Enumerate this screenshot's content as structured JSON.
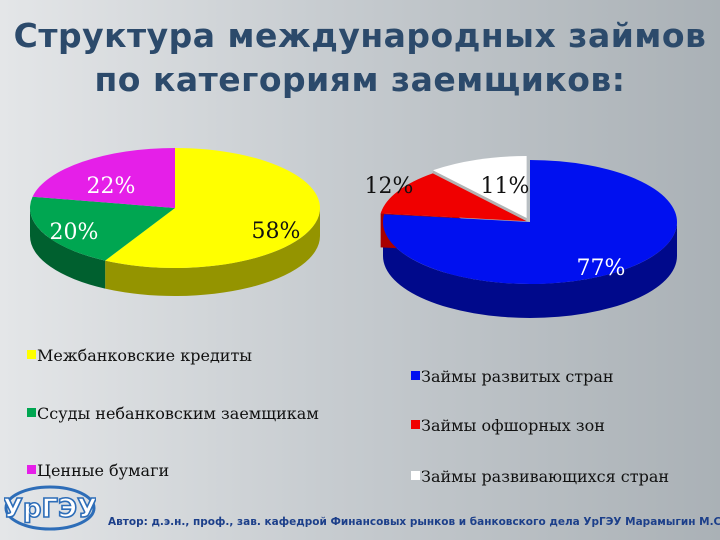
{
  "title": {
    "line1": "Структура международных займов",
    "line2": "по категориям заемщиков:"
  },
  "chart_data": [
    {
      "type": "pie",
      "slices": [
        {
          "name": "Межбанковские кредиты",
          "value": 58,
          "label": "58%",
          "color": "#ffff00"
        },
        {
          "name": "Ссуды небанковским заемщикам",
          "value": 20,
          "label": "20%",
          "color": "#00a651"
        },
        {
          "name": "Ценные бумаги",
          "value": 22,
          "label": "22%",
          "color": "#e51fe8"
        }
      ],
      "legend_position": "bottom-left"
    },
    {
      "type": "pie",
      "slices": [
        {
          "name": "Займы развитых стран",
          "value": 77,
          "label": "77%",
          "color": "#0010f0"
        },
        {
          "name": "Займы офшорных зон",
          "value": 12,
          "label": "12%",
          "color": "#f00000"
        },
        {
          "name": "Займы развивающихся стран",
          "value": 11,
          "label": "11%",
          "color": "#ffffff"
        }
      ],
      "legend_position": "bottom-right"
    }
  ],
  "logo_text": "УрГЭУ",
  "author": "Автор: д.э.н., проф., зав. кафедрой Финансовых рынков и банковского дела УрГЭУ Марамыгин М.С."
}
